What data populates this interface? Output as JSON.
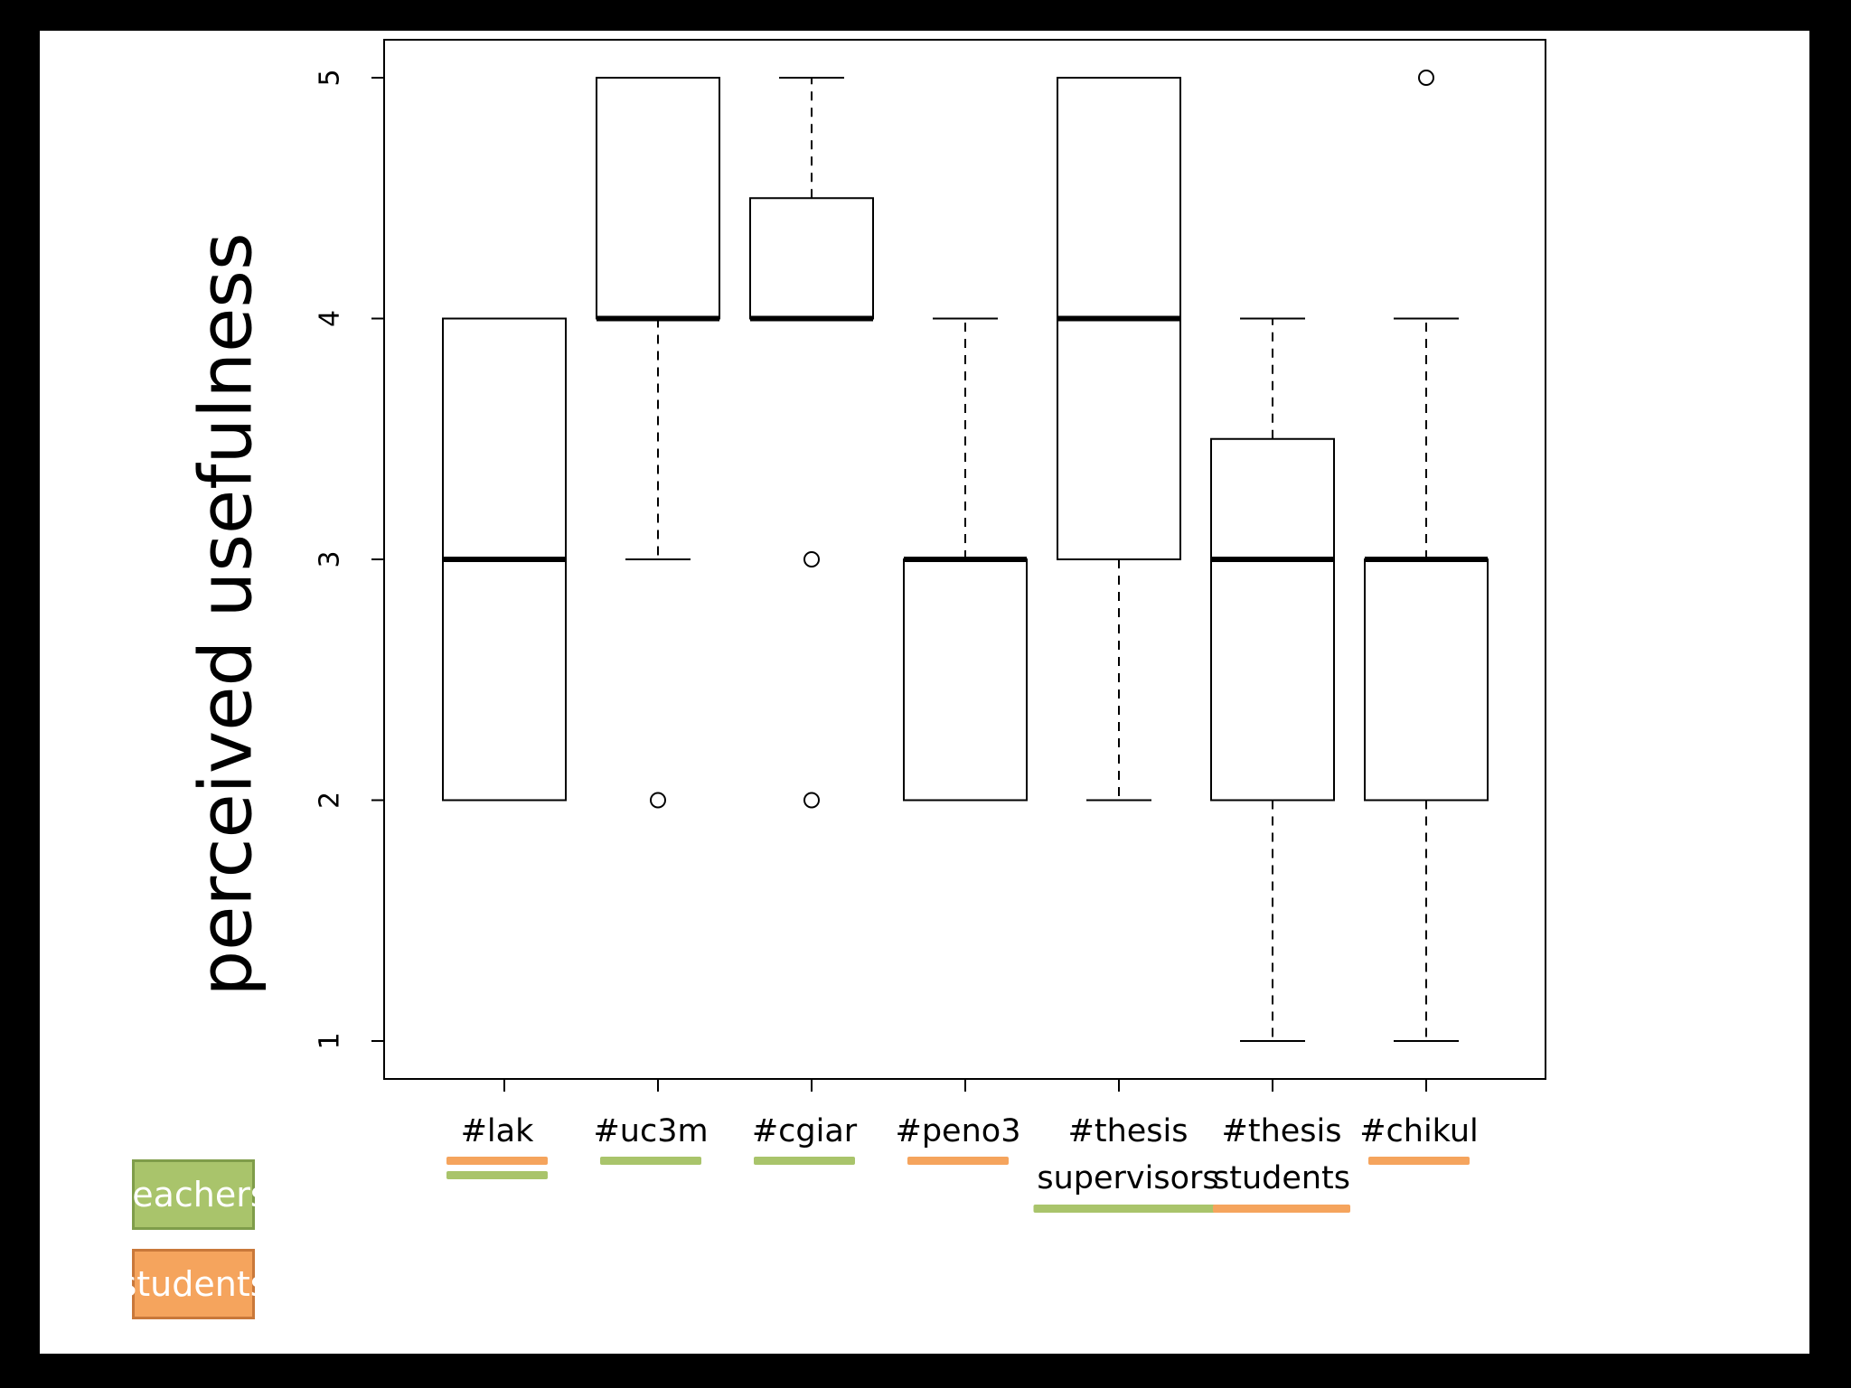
{
  "chart_data": {
    "type": "boxplot",
    "ylabel": "perceived usefulness",
    "ylim": [
      1,
      5
    ],
    "yticks": [
      "1",
      "2",
      "3",
      "4",
      "5"
    ],
    "categories": [
      {
        "lines": [
          "#lak"
        ],
        "groups": [
          "students",
          "teachers"
        ],
        "min": 2,
        "q1": 2,
        "median": 3,
        "q3": 4,
        "max": 4,
        "outliers": []
      },
      {
        "lines": [
          "#uc3m"
        ],
        "groups": [
          "teachers"
        ],
        "min": 3,
        "q1": 4,
        "median": 4,
        "q3": 5,
        "max": 5,
        "outliers": [
          2
        ]
      },
      {
        "lines": [
          "#cgiar"
        ],
        "groups": [
          "teachers"
        ],
        "min": 4,
        "q1": 4,
        "median": 4,
        "q3": 4.5,
        "max": 5,
        "outliers": [
          3,
          2
        ]
      },
      {
        "lines": [
          "#peno3"
        ],
        "groups": [
          "students"
        ],
        "min": 2,
        "q1": 2,
        "median": 3,
        "q3": 3,
        "max": 4,
        "outliers": []
      },
      {
        "lines": [
          "#thesis",
          "supervisors"
        ],
        "groups": [
          "teachers"
        ],
        "min": 2,
        "q1": 3,
        "median": 4,
        "q3": 5,
        "max": 5,
        "outliers": []
      },
      {
        "lines": [
          "#thesis",
          "students"
        ],
        "groups": [
          "students"
        ],
        "min": 1,
        "q1": 2,
        "median": 3,
        "q3": 3.5,
        "max": 4,
        "outliers": []
      },
      {
        "lines": [
          "#chikul"
        ],
        "groups": [
          "students"
        ],
        "min": 1,
        "q1": 2,
        "median": 3,
        "q3": 3,
        "max": 4,
        "outliers": [
          5
        ]
      }
    ],
    "grid": false,
    "legend": {
      "placement": "bottom-left",
      "entries": [
        {
          "label": "teachers",
          "color": "#a9c46b"
        },
        {
          "label": "students",
          "color": "#f5a45d"
        }
      ]
    }
  },
  "colors": {
    "teachers": "#a9c46b",
    "students": "#f5a45d",
    "background": "#000000",
    "slide": "#ffffff"
  }
}
